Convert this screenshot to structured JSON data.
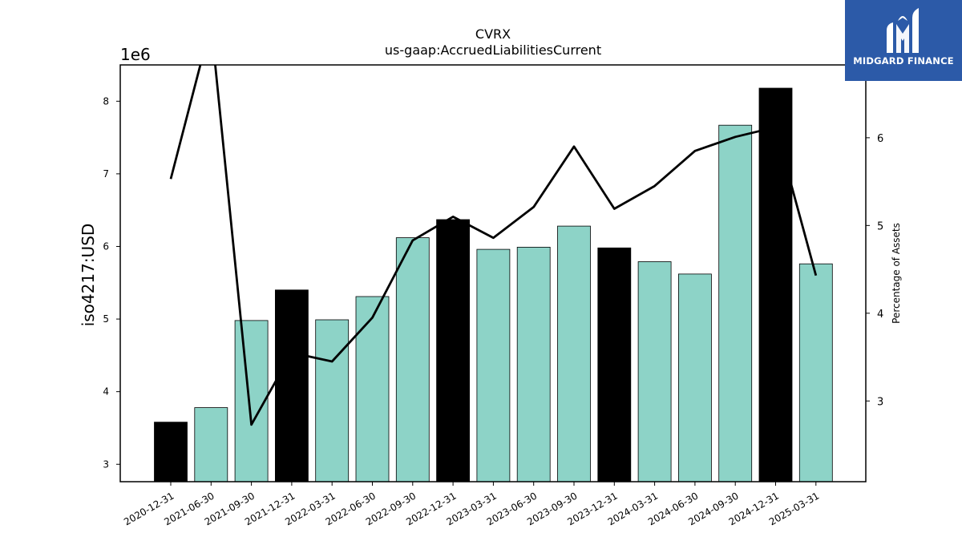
{
  "chart_data": {
    "type": "bar",
    "title": "CVRX",
    "subtitle": "us-gaap:AccruedLiabilitiesCurrent",
    "ylabel": "iso4217:USD",
    "y_offset_label": "1e6",
    "y2label": "Percentage of Assets",
    "categories": [
      "2020-12-31",
      "2021-06-30",
      "2021-09-30",
      "2021-12-31",
      "2022-03-31",
      "2022-06-30",
      "2022-09-30",
      "2022-12-31",
      "2023-03-31",
      "2023-06-30",
      "2023-09-30",
      "2023-12-31",
      "2024-03-31",
      "2024-06-30",
      "2024-09-30",
      "2024-12-31",
      "2025-03-31"
    ],
    "series": [
      {
        "type": "bar",
        "values": [
          3.58,
          3.78,
          4.98,
          5.4,
          4.99,
          5.31,
          6.12,
          6.37,
          5.96,
          5.99,
          6.28,
          5.98,
          5.79,
          5.62,
          7.67,
          8.18,
          5.76
        ],
        "highlighted": [
          true,
          false,
          false,
          true,
          false,
          false,
          false,
          true,
          false,
          false,
          false,
          true,
          false,
          false,
          false,
          true,
          false
        ]
      },
      {
        "type": "line",
        "values": [
          5.53,
          7.3,
          2.73,
          3.55,
          3.45,
          3.95,
          4.83,
          5.1,
          4.86,
          5.21,
          5.9,
          5.19,
          5.45,
          5.85,
          6.01,
          6.12,
          4.43
        ]
      }
    ],
    "ylim": [
      2.76,
      8.5
    ],
    "y2lim": [
      2.08,
      6.83
    ],
    "yticks": [
      3,
      4,
      5,
      6,
      7,
      8
    ],
    "y2ticks": [
      3,
      4,
      5,
      6
    ],
    "colors": {
      "bar": "#8dd3c7",
      "bar_highlight": "#000000",
      "line": "#000000"
    }
  },
  "logo": {
    "text": "MIDGARD FINANCE",
    "bg": "#2c5aa8"
  }
}
